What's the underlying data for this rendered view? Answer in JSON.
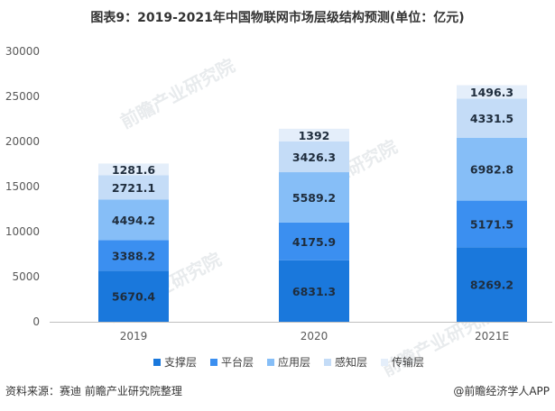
{
  "footer": {
    "source": "资料来源：赛迪 前瞻产业研究院整理",
    "app": "@前瞻经济学人APP"
  },
  "watermark_text": "前瞻产业研究院",
  "chart_data": {
    "type": "bar",
    "stacked": true,
    "title": "图表9：2019-2021年中国物联网市场层级结构预测(单位：亿元)",
    "categories": [
      "2019",
      "2020",
      "2021E"
    ],
    "series": [
      {
        "name": "支撑层",
        "color": "#1a78dc",
        "values": [
          5670.4,
          6831.3,
          8269.2
        ],
        "labels": [
          "5670.4",
          "6831.3",
          "8269.2"
        ]
      },
      {
        "name": "平台层",
        "color": "#3b8ff0",
        "values": [
          3388.2,
          4175.9,
          5171.5
        ],
        "labels": [
          "3388.2",
          "4175.9",
          "5171.5"
        ]
      },
      {
        "name": "应用层",
        "color": "#86bef7",
        "values": [
          4494.2,
          5589.2,
          6982.8
        ],
        "labels": [
          "4494.2",
          "5589.2",
          "6982.8"
        ]
      },
      {
        "name": "感知层",
        "color": "#c4dcf7",
        "values": [
          2721.1,
          3426.3,
          4331.5
        ],
        "labels": [
          "2721.1",
          "3426.3",
          "4331.5"
        ]
      },
      {
        "name": "传输层",
        "color": "#e4eefa",
        "values": [
          1281.6,
          1392,
          1496.3
        ],
        "labels": [
          "1281.6",
          "1392",
          "1496.3"
        ]
      }
    ],
    "yticks": [
      0,
      5000,
      10000,
      15000,
      20000,
      25000,
      30000
    ],
    "ylim": [
      0,
      30000
    ],
    "xlabel": "",
    "ylabel": "",
    "grid": false,
    "legend_position": "bottom"
  }
}
